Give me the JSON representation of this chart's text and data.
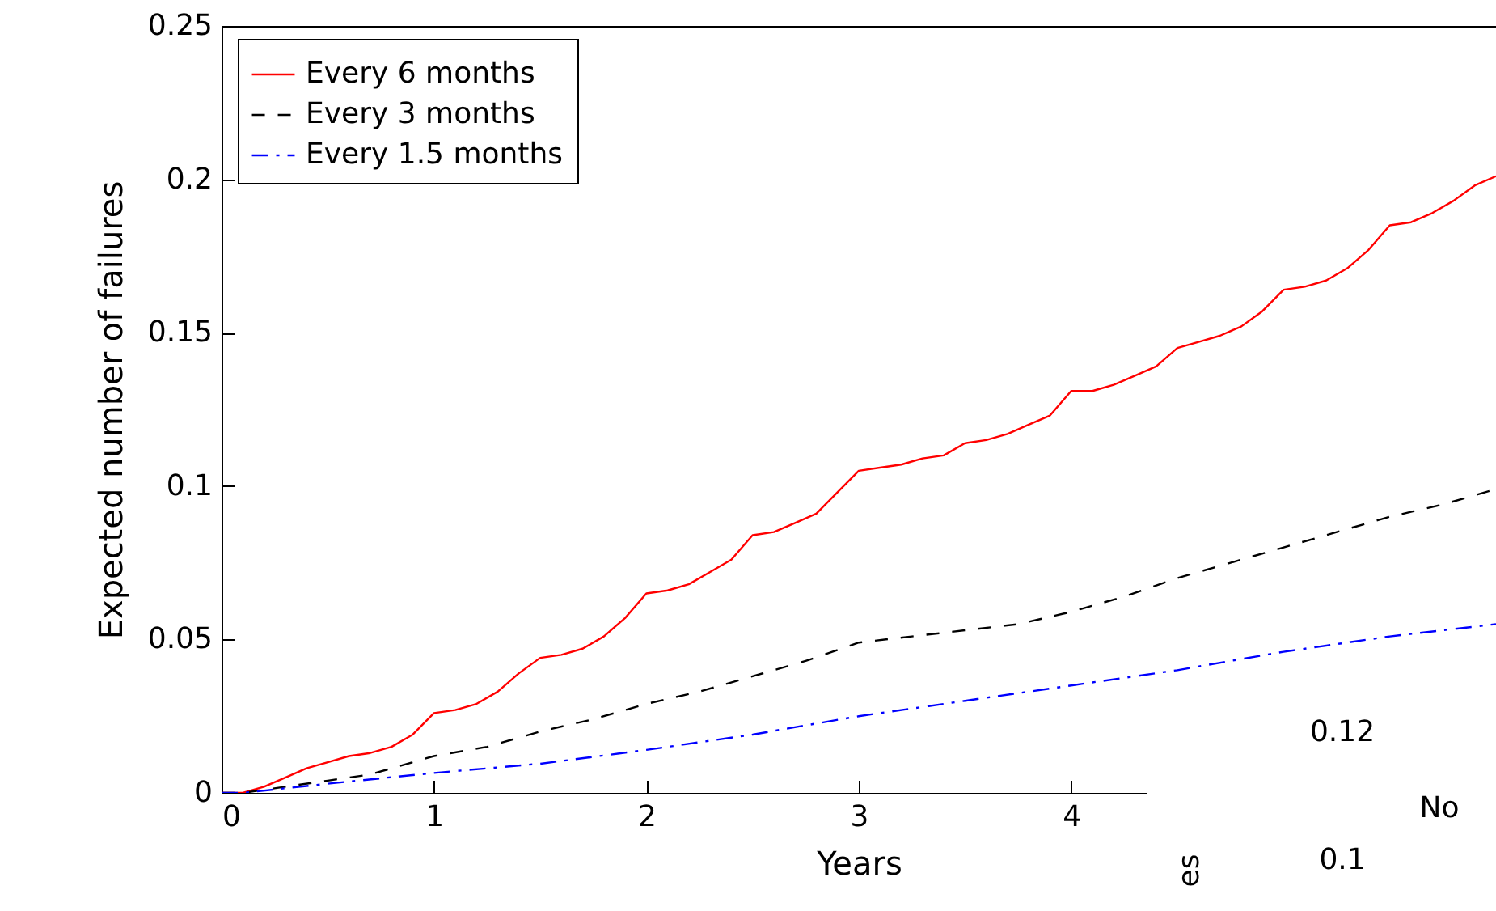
{
  "chart_data": [
    {
      "type": "line",
      "xlabel": "Years",
      "ylabel": "Expected number of failures",
      "xlim": [
        0,
        6
      ],
      "xticks": [
        0,
        1,
        2,
        3,
        4
      ],
      "ylim": [
        0,
        0.25
      ],
      "yticks": [
        0,
        0.05,
        0.1,
        0.15,
        0.2,
        0.25
      ],
      "legend": "top left",
      "series": [
        {
          "name": "Every 6 months",
          "color": "#ff0000",
          "line_style": "solid",
          "x": [
            0,
            0.1,
            0.2,
            0.3,
            0.4,
            0.5,
            0.6,
            0.7,
            0.8,
            0.9,
            1.0,
            1.1,
            1.2,
            1.3,
            1.4,
            1.5,
            1.6,
            1.7,
            1.8,
            1.9,
            2.0,
            2.1,
            2.2,
            2.3,
            2.4,
            2.5,
            2.6,
            2.7,
            2.8,
            2.9,
            3.0,
            3.1,
            3.2,
            3.3,
            3.4,
            3.5,
            3.6,
            3.7,
            3.8,
            3.9,
            4.0,
            4.1,
            4.2,
            4.3,
            4.4,
            4.5,
            4.6,
            4.7,
            4.8,
            4.9,
            5.0,
            5.1,
            5.2,
            5.3,
            5.4,
            5.5,
            5.6,
            5.7,
            5.8,
            5.9,
            6.0
          ],
          "values": [
            0,
            0,
            0.002,
            0.005,
            0.008,
            0.01,
            0.012,
            0.013,
            0.015,
            0.019,
            0.026,
            0.027,
            0.029,
            0.033,
            0.039,
            0.044,
            0.045,
            0.047,
            0.051,
            0.057,
            0.065,
            0.066,
            0.068,
            0.072,
            0.076,
            0.084,
            0.085,
            0.088,
            0.091,
            0.098,
            0.105,
            0.106,
            0.107,
            0.109,
            0.11,
            0.114,
            0.115,
            0.117,
            0.12,
            0.123,
            0.131,
            0.131,
            0.133,
            0.136,
            0.139,
            0.145,
            0.147,
            0.149,
            0.152,
            0.157,
            0.164,
            0.165,
            0.167,
            0.171,
            0.177,
            0.185,
            0.186,
            0.189,
            0.193,
            0.198,
            0.201
          ]
        },
        {
          "name": "Every 3 months",
          "color": "#000000",
          "line_style": "dashed",
          "x": [
            0,
            0.1,
            0.3,
            0.5,
            0.7,
            1.0,
            1.25,
            1.5,
            1.75,
            2.0,
            2.25,
            2.5,
            2.75,
            3.0,
            3.25,
            3.5,
            3.75,
            4.0,
            4.25,
            4.5,
            4.75,
            5.0,
            5.25,
            5.5,
            5.75,
            6.0
          ],
          "values": [
            0,
            0,
            0.002,
            0.004,
            0.006,
            0.012,
            0.015,
            0.02,
            0.024,
            0.029,
            0.033,
            0.038,
            0.043,
            0.049,
            0.051,
            0.053,
            0.055,
            0.059,
            0.064,
            0.07,
            0.075,
            0.08,
            0.085,
            0.09,
            0.094,
            0.099
          ]
        },
        {
          "name": "Every 1.5 months",
          "color": "#0000ff",
          "line_style": "dashdot",
          "x": [
            0,
            0.1,
            0.5,
            1.0,
            1.5,
            2.0,
            2.5,
            3.0,
            3.5,
            4.0,
            4.5,
            5.0,
            5.5,
            6.0
          ],
          "values": [
            0,
            0,
            0.003,
            0.0065,
            0.0095,
            0.014,
            0.019,
            0.025,
            0.03,
            0.035,
            0.04,
            0.046,
            0.051,
            0.055
          ]
        }
      ]
    },
    {
      "type": "other",
      "annotations": [
        "0.12",
        "0.1",
        "No",
        "es"
      ]
    }
  ]
}
